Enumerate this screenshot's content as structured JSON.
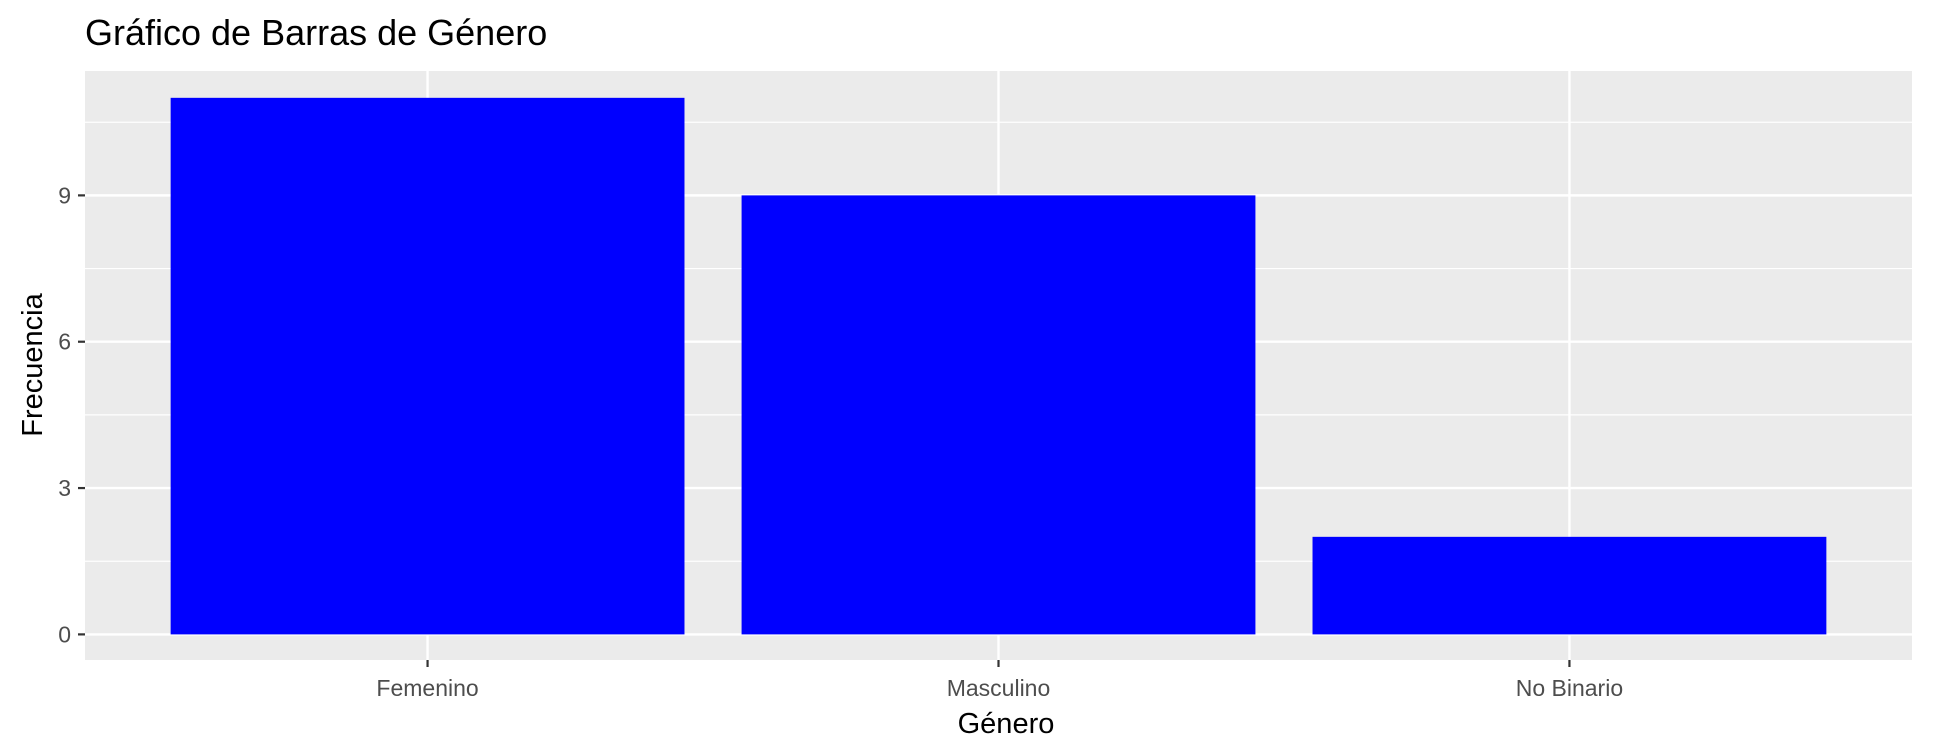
{
  "chart_data": {
    "type": "bar",
    "title": "Gráfico de Barras de Género",
    "xlabel": "Género",
    "ylabel": "Frecuencia",
    "categories": [
      "Femenino",
      "Masculino",
      "No Binario"
    ],
    "values": [
      11,
      9,
      2
    ],
    "ylim": [
      0,
      11.55
    ],
    "yticks": [
      0,
      3,
      6,
      9
    ],
    "ytick_labels": [
      "0",
      "3",
      "6",
      "9"
    ],
    "grid": true,
    "bar_color": "#0000FF",
    "panel_background": "#EBEBEB",
    "grid_color": "#FFFFFF"
  }
}
